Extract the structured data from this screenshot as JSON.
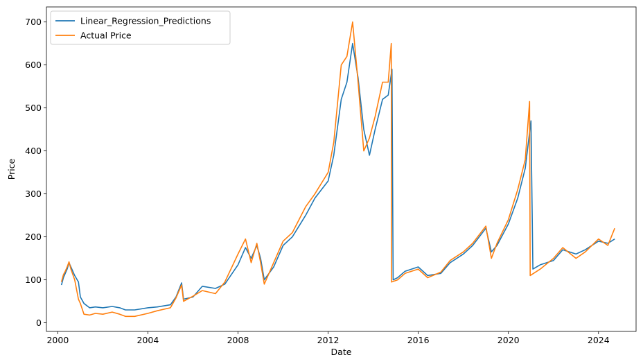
{
  "chart_data": {
    "type": "line",
    "title": "",
    "xlabel": "Date",
    "ylabel": "Price",
    "xlim": [
      "1999-07-01",
      "2025-09-01"
    ],
    "ylim": [
      -20,
      735
    ],
    "x_ticks": [
      "2000",
      "2004",
      "2008",
      "2012",
      "2016",
      "2020",
      "2024"
    ],
    "y_ticks": [
      0,
      100,
      200,
      300,
      400,
      500,
      600,
      700
    ],
    "grid": false,
    "legend": "top-left",
    "colors": {
      "Linear_Regression_Predictions": "#1f77b4",
      "Actual Price": "#ff7f0e"
    },
    "series": [
      {
        "name": "Linear_Regression_Predictions",
        "points": [
          [
            "2000-03-01",
            88
          ],
          [
            "2000-04-01",
            105
          ],
          [
            "2000-05-01",
            115
          ],
          [
            "2000-06-01",
            125
          ],
          [
            "2000-07-01",
            140
          ],
          [
            "2000-08-01",
            130
          ],
          [
            "2000-10-01",
            110
          ],
          [
            "2000-12-01",
            95
          ],
          [
            "2001-01-01",
            60
          ],
          [
            "2001-03-01",
            45
          ],
          [
            "2001-06-01",
            35
          ],
          [
            "2001-09-01",
            37
          ],
          [
            "2002-01-01",
            35
          ],
          [
            "2002-06-01",
            38
          ],
          [
            "2002-10-01",
            35
          ],
          [
            "2003-01-01",
            30
          ],
          [
            "2003-06-01",
            30
          ],
          [
            "2004-01-01",
            35
          ],
          [
            "2004-06-01",
            37
          ],
          [
            "2005-01-01",
            42
          ],
          [
            "2005-04-01",
            60
          ],
          [
            "2005-07-01",
            93
          ],
          [
            "2005-08-01",
            55
          ],
          [
            "2006-01-01",
            60
          ],
          [
            "2006-06-01",
            85
          ],
          [
            "2007-01-01",
            80
          ],
          [
            "2007-06-01",
            90
          ],
          [
            "2008-01-01",
            135
          ],
          [
            "2008-05-01",
            175
          ],
          [
            "2008-08-01",
            150
          ],
          [
            "2008-11-01",
            180
          ],
          [
            "2009-01-01",
            150
          ],
          [
            "2009-03-01",
            100
          ],
          [
            "2009-08-01",
            130
          ],
          [
            "2010-01-01",
            180
          ],
          [
            "2010-06-01",
            200
          ],
          [
            "2011-01-01",
            250
          ],
          [
            "2011-06-01",
            290
          ],
          [
            "2012-01-01",
            330
          ],
          [
            "2012-04-01",
            390
          ],
          [
            "2012-08-01",
            520
          ],
          [
            "2012-11-01",
            560
          ],
          [
            "2013-02-01",
            650
          ],
          [
            "2013-05-01",
            570
          ],
          [
            "2013-08-01",
            450
          ],
          [
            "2013-11-01",
            390
          ],
          [
            "2014-02-01",
            450
          ],
          [
            "2014-06-01",
            520
          ],
          [
            "2014-09-01",
            530
          ],
          [
            "2014-11-01",
            590
          ],
          [
            "2014-11-20",
            100
          ],
          [
            "2015-02-01",
            105
          ],
          [
            "2015-06-01",
            120
          ],
          [
            "2016-01-01",
            130
          ],
          [
            "2016-06-01",
            110
          ],
          [
            "2017-01-01",
            115
          ],
          [
            "2017-06-01",
            140
          ],
          [
            "2018-01-01",
            160
          ],
          [
            "2018-06-01",
            180
          ],
          [
            "2019-01-01",
            220
          ],
          [
            "2019-04-01",
            165
          ],
          [
            "2019-07-01",
            180
          ],
          [
            "2020-01-01",
            230
          ],
          [
            "2020-06-01",
            290
          ],
          [
            "2020-10-01",
            360
          ],
          [
            "2021-01-01",
            470
          ],
          [
            "2021-02-01",
            125
          ],
          [
            "2021-06-01",
            135
          ],
          [
            "2022-01-01",
            145
          ],
          [
            "2022-06-01",
            170
          ],
          [
            "2023-01-01",
            160
          ],
          [
            "2023-06-01",
            170
          ],
          [
            "2024-01-01",
            190
          ],
          [
            "2024-06-01",
            185
          ],
          [
            "2024-09-20",
            195
          ]
        ]
      },
      {
        "name": "Actual Price",
        "points": [
          [
            "2000-03-01",
            95
          ],
          [
            "2000-04-01",
            112
          ],
          [
            "2000-05-01",
            120
          ],
          [
            "2000-06-01",
            130
          ],
          [
            "2000-07-01",
            142
          ],
          [
            "2000-08-01",
            125
          ],
          [
            "2000-10-01",
            100
          ],
          [
            "2000-12-01",
            55
          ],
          [
            "2001-01-01",
            45
          ],
          [
            "2001-03-01",
            20
          ],
          [
            "2001-06-01",
            18
          ],
          [
            "2001-09-01",
            22
          ],
          [
            "2002-01-01",
            20
          ],
          [
            "2002-06-01",
            25
          ],
          [
            "2002-10-01",
            20
          ],
          [
            "2003-01-01",
            15
          ],
          [
            "2003-06-01",
            15
          ],
          [
            "2004-01-01",
            22
          ],
          [
            "2004-06-01",
            28
          ],
          [
            "2005-01-01",
            35
          ],
          [
            "2005-04-01",
            58
          ],
          [
            "2005-07-01",
            88
          ],
          [
            "2005-08-01",
            50
          ],
          [
            "2006-01-01",
            62
          ],
          [
            "2006-06-01",
            75
          ],
          [
            "2007-01-01",
            68
          ],
          [
            "2007-06-01",
            95
          ],
          [
            "2008-01-01",
            160
          ],
          [
            "2008-05-01",
            195
          ],
          [
            "2008-08-01",
            140
          ],
          [
            "2008-11-01",
            185
          ],
          [
            "2009-01-01",
            140
          ],
          [
            "2009-03-01",
            90
          ],
          [
            "2009-08-01",
            140
          ],
          [
            "2010-01-01",
            190
          ],
          [
            "2010-06-01",
            210
          ],
          [
            "2011-01-01",
            270
          ],
          [
            "2011-06-01",
            300
          ],
          [
            "2012-01-01",
            350
          ],
          [
            "2012-04-01",
            420
          ],
          [
            "2012-08-01",
            600
          ],
          [
            "2012-11-01",
            620
          ],
          [
            "2013-02-01",
            700
          ],
          [
            "2013-05-01",
            560
          ],
          [
            "2013-08-01",
            400
          ],
          [
            "2013-11-01",
            430
          ],
          [
            "2014-02-01",
            480
          ],
          [
            "2014-06-01",
            560
          ],
          [
            "2014-09-01",
            560
          ],
          [
            "2014-10-20",
            650
          ],
          [
            "2014-10-25",
            95
          ],
          [
            "2015-02-01",
            100
          ],
          [
            "2015-06-01",
            115
          ],
          [
            "2016-01-01",
            125
          ],
          [
            "2016-06-01",
            105
          ],
          [
            "2017-01-01",
            118
          ],
          [
            "2017-06-01",
            145
          ],
          [
            "2018-01-01",
            165
          ],
          [
            "2018-06-01",
            185
          ],
          [
            "2019-01-01",
            225
          ],
          [
            "2019-04-01",
            150
          ],
          [
            "2019-07-01",
            185
          ],
          [
            "2020-01-01",
            240
          ],
          [
            "2020-06-01",
            310
          ],
          [
            "2020-10-01",
            380
          ],
          [
            "2020-12-10",
            515
          ],
          [
            "2020-12-20",
            110
          ],
          [
            "2021-06-01",
            125
          ],
          [
            "2022-01-01",
            150
          ],
          [
            "2022-06-01",
            175
          ],
          [
            "2023-01-01",
            150
          ],
          [
            "2023-06-01",
            165
          ],
          [
            "2024-01-01",
            195
          ],
          [
            "2024-06-01",
            180
          ],
          [
            "2024-09-20",
            220
          ]
        ]
      }
    ]
  }
}
